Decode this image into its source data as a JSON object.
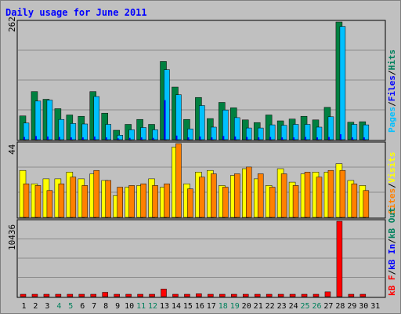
{
  "title": "Daily usage for June 2011",
  "colors": {
    "hits": "#008040",
    "files": "#00c0ff",
    "pages": "#00e0ff",
    "visits": "#ffff00",
    "sites": "#ff8000",
    "kbf": "#ff0000",
    "kbin": "#0000ff",
    "kbout": "#00c060",
    "title": "#0000ff",
    "weekend_day": "#00805c",
    "weekday_day": "#000000"
  },
  "legend_top": {
    "pages": "Pages",
    "files": "Files",
    "hits": "Hits",
    "sep1": "/",
    "sep2": "/"
  },
  "legend_mid": {
    "sites": "Sites",
    "visits": "Visits",
    "sep": "/"
  },
  "legend_bot": {
    "kbf": "kB F",
    "kbin": "kB In",
    "kbout": "kB Out",
    "sep1": "/",
    "sep2": "/"
  },
  "chart_data": {
    "type": "bar",
    "categories": [
      "1",
      "2",
      "3",
      "4",
      "5",
      "6",
      "7",
      "8",
      "9",
      "10",
      "11",
      "12",
      "13",
      "14",
      "15",
      "16",
      "17",
      "18",
      "19",
      "20",
      "21",
      "22",
      "23",
      "24",
      "25",
      "26",
      "27",
      "28",
      "29",
      "30",
      "31"
    ],
    "weekend_days": [
      4,
      5,
      11,
      12,
      18,
      19,
      25,
      26
    ],
    "panels": [
      {
        "name": "hits-files-pages",
        "max_label": "262",
        "ymax": 262,
        "series": [
          {
            "name": "Hits",
            "values": [
              53,
              107,
              90,
              69,
              55,
              52,
              107,
              59,
              21,
              34,
              45,
              34,
              174,
              117,
              45,
              94,
              47,
              83,
              71,
              44,
              38,
              55,
              42,
              46,
              52,
              44,
              72,
              262,
              39,
              40,
              0
            ]
          },
          {
            "name": "Files",
            "values": [
              37,
              86,
              88,
              45,
              36,
              35,
              96,
              34,
              10,
              22,
              27,
              22,
              156,
              100,
              24,
              76,
              28,
              66,
              49,
              26,
              26,
              33,
              32,
              34,
              34,
              28,
              51,
              252,
              34,
              33,
              0
            ]
          },
          {
            "name": "Pages",
            "values": [
              6,
              8,
              7,
              6,
              5,
              5,
              7,
              5,
              3,
              4,
              5,
              4,
              88,
              9,
              5,
              7,
              5,
              8,
              7,
              6,
              5,
              6,
              5,
              5,
              6,
              5,
              6,
              12,
              5,
              5,
              0
            ]
          }
        ]
      },
      {
        "name": "visits-sites",
        "max_label": "44",
        "ymax": 44,
        "series": [
          {
            "name": "Visits",
            "values": [
              28,
              20,
              23,
              23,
              27,
              23,
              26,
              22,
              13,
              18,
              19,
              23,
              18,
              42,
              20,
              27,
              28,
              19,
              25,
              29,
              23,
              19,
              29,
              21,
              26,
              27,
              27,
              32,
              22,
              19,
              0
            ]
          },
          {
            "name": "Sites",
            "values": [
              20,
              19,
              16,
              20,
              24,
              19,
              28,
              22,
              18,
              19,
              20,
              19,
              20,
              44,
              17,
              24,
              26,
              18,
              26,
              30,
              26,
              18,
              26,
              19,
              27,
              24,
              28,
              28,
              20,
              16,
              0
            ]
          }
        ]
      },
      {
        "name": "kb",
        "max_label": "10436",
        "ymax": 10436,
        "series": [
          {
            "name": "kB F",
            "values": [
              210,
              100,
              110,
              100,
              140,
              120,
              120,
              600,
              120,
              180,
              160,
              170,
              1050,
              110,
              120,
              390,
              240,
              140,
              130,
              150,
              120,
              110,
              230,
              250,
              280,
              130,
              660,
              10436,
              140,
              100,
              0
            ]
          },
          {
            "name": "kB In",
            "values": [
              0,
              0,
              0,
              0,
              0,
              0,
              0,
              0,
              0,
              0,
              0,
              0,
              0,
              0,
              0,
              0,
              0,
              0,
              0,
              0,
              0,
              0,
              0,
              0,
              0,
              0,
              0,
              0,
              0,
              0,
              0
            ]
          },
          {
            "name": "kB Out",
            "values": [
              0,
              0,
              0,
              0,
              0,
              0,
              0,
              0,
              0,
              0,
              0,
              0,
              0,
              0,
              0,
              0,
              0,
              0,
              0,
              0,
              0,
              0,
              0,
              0,
              0,
              0,
              0,
              0,
              0,
              0,
              0
            ]
          }
        ]
      }
    ]
  }
}
